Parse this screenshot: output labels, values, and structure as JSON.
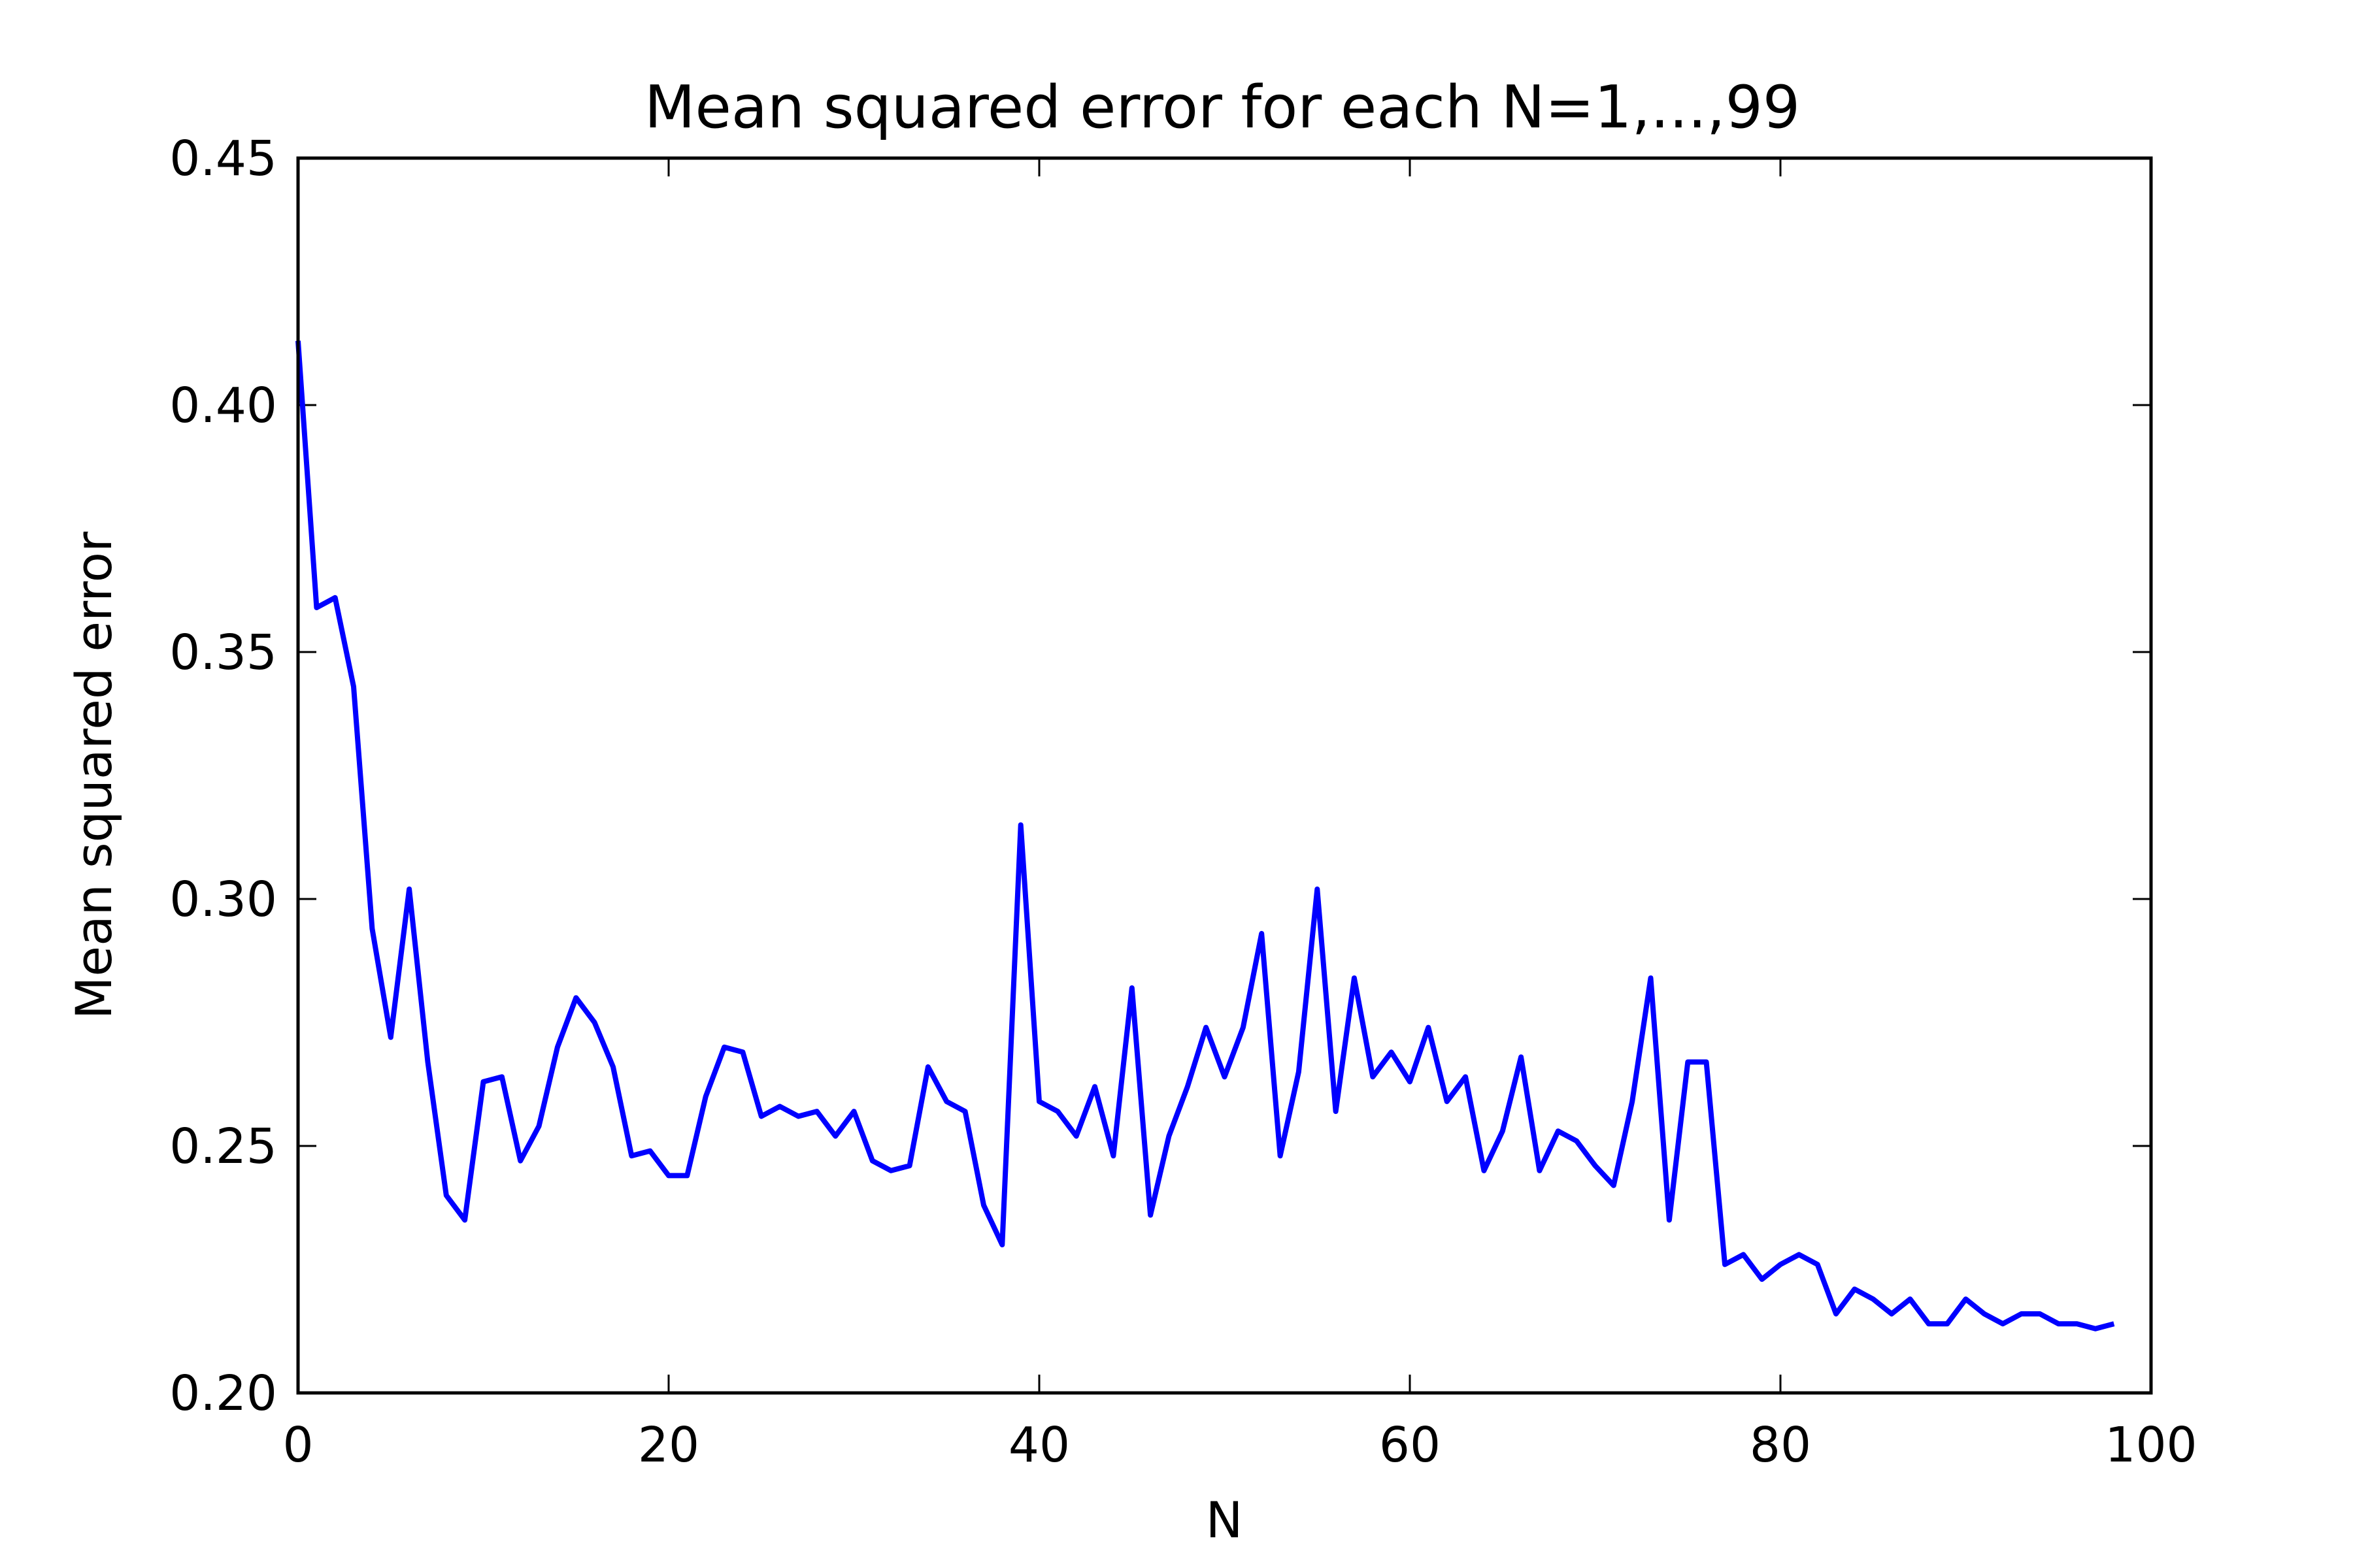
{
  "chart_data": {
    "type": "line",
    "title": "Mean squared error for each N=1,...,99",
    "xlabel": "N",
    "ylabel": "Mean squared error",
    "xlim": [
      0,
      100
    ],
    "ylim": [
      0.2,
      0.45
    ],
    "xticks": [
      0,
      20,
      40,
      60,
      80,
      100
    ],
    "xtick_labels": [
      "0",
      "20",
      "40",
      "60",
      "80",
      "100"
    ],
    "yticks": [
      0.2,
      0.25,
      0.3,
      0.35,
      0.4,
      0.45
    ],
    "ytick_labels": [
      "0.20",
      "0.25",
      "0.30",
      "0.35",
      "0.40",
      "0.45"
    ],
    "grid": false,
    "legend": "none",
    "line_color": "#0000ff",
    "series": [
      {
        "x": [
          0,
          1,
          2,
          3,
          4,
          5,
          6,
          7,
          8,
          9,
          10,
          11,
          12,
          13,
          14,
          15,
          16,
          17,
          18,
          19,
          20,
          21,
          22,
          23,
          24,
          25,
          26,
          27,
          28,
          29,
          30,
          31,
          32,
          33,
          34,
          35,
          36,
          37,
          38,
          39,
          40,
          41,
          42,
          43,
          44,
          45,
          46,
          47,
          48,
          49,
          50,
          51,
          52,
          53,
          54,
          55,
          56,
          57,
          58,
          59,
          60,
          61,
          62,
          63,
          64,
          65,
          66,
          67,
          68,
          69,
          70,
          71,
          72,
          73,
          74,
          75,
          76,
          77,
          78,
          79,
          80,
          81,
          82,
          83,
          84,
          85,
          86,
          87,
          88,
          89,
          90,
          91,
          92,
          93,
          94,
          95,
          96,
          97,
          98
        ],
        "values": [
          0.413,
          0.359,
          0.361,
          0.343,
          0.294,
          0.272,
          0.302,
          0.267,
          0.24,
          0.235,
          0.263,
          0.264,
          0.247,
          0.254,
          0.27,
          0.28,
          0.275,
          0.266,
          0.248,
          0.249,
          0.244,
          0.244,
          0.26,
          0.27,
          0.269,
          0.256,
          0.258,
          0.256,
          0.257,
          0.252,
          0.257,
          0.247,
          0.245,
          0.246,
          0.266,
          0.259,
          0.257,
          0.238,
          0.23,
          0.315,
          0.259,
          0.257,
          0.252,
          0.262,
          0.248,
          0.282,
          0.236,
          0.252,
          0.262,
          0.274,
          0.264,
          0.274,
          0.293,
          0.248,
          0.265,
          0.302,
          0.257,
          0.284,
          0.264,
          0.269,
          0.263,
          0.274,
          0.259,
          0.264,
          0.245,
          0.253,
          0.268,
          0.245,
          0.253,
          0.251,
          0.246,
          0.242,
          0.259,
          0.284,
          0.235,
          0.267,
          0.267,
          0.226,
          0.228,
          0.223,
          0.226,
          0.228,
          0.226,
          0.216,
          0.221,
          0.219,
          0.216,
          0.219,
          0.214,
          0.214,
          0.219,
          0.216,
          0.214,
          0.216,
          0.216,
          0.214,
          0.214,
          0.213,
          0.214
        ]
      }
    ]
  }
}
